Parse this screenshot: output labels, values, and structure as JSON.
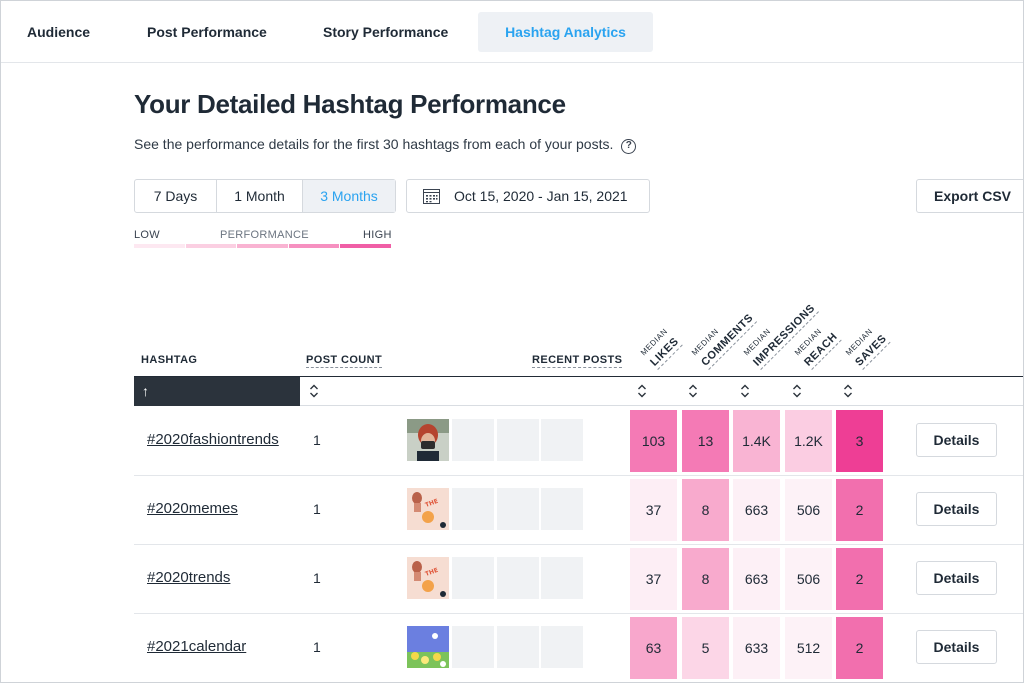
{
  "tabs": [
    {
      "label": "Audience",
      "active": false
    },
    {
      "label": "Post Performance",
      "active": false
    },
    {
      "label": "Story Performance",
      "active": false
    },
    {
      "label": "Hashtag Analytics",
      "active": true
    }
  ],
  "page": {
    "title": "Your Detailed Hashtag Performance",
    "subtitle": "See the performance details for the first 30 hashtags from each of your posts.",
    "help_icon": "question-circle-icon"
  },
  "period": {
    "options": [
      "7 Days",
      "1 Month",
      "3 Months"
    ],
    "selected": "3 Months"
  },
  "date_range": {
    "label": "Oct 15, 2020 - Jan 15, 2021",
    "icon": "calendar-icon"
  },
  "export": {
    "label": "Export CSV"
  },
  "legend": {
    "low": "LOW",
    "title": "PERFORMANCE",
    "high": "HIGH",
    "scale_colors": [
      "#fde8f1",
      "#fbcfe2",
      "#f9b3d2",
      "#f690c0",
      "#f05fa6"
    ]
  },
  "table": {
    "columns": {
      "hashtag": "HASHTAG",
      "post_count": "POST COUNT",
      "recent_posts": "RECENT POSTS",
      "median_prefix": "MEDIAN",
      "likes": "LIKES",
      "comments": "COMMENTS",
      "impressions": "IMPRESSIONS",
      "reach": "REACH",
      "saves": "SAVES"
    },
    "sort_icon": "arrow-up-icon",
    "rows": [
      {
        "hashtag": "#2020fashiontrends",
        "post_count": "1",
        "likes": "103",
        "comments": "13",
        "impressions": "1.4K",
        "reach": "1.2K",
        "saves": "3",
        "details": "Details",
        "colors": [
          "#f47ab5",
          "#f47ab5",
          "#f9b4d3",
          "#fbcde2",
          "#ee3e95"
        ]
      },
      {
        "hashtag": "#2020memes",
        "post_count": "1",
        "likes": "37",
        "comments": "8",
        "impressions": "663",
        "reach": "506",
        "saves": "2",
        "details": "Details",
        "colors": [
          "#fdeef5",
          "#f8aacd",
          "#fdf0f6",
          "#fdf2f7",
          "#f26fae"
        ]
      },
      {
        "hashtag": "#2020trends",
        "post_count": "1",
        "likes": "37",
        "comments": "8",
        "impressions": "663",
        "reach": "506",
        "saves": "2",
        "details": "Details",
        "colors": [
          "#fdeef5",
          "#f8aacd",
          "#fdf0f6",
          "#fdf2f7",
          "#f26fae"
        ]
      },
      {
        "hashtag": "#2021calendar",
        "post_count": "1",
        "likes": "63",
        "comments": "5",
        "impressions": "633",
        "reach": "512",
        "saves": "2",
        "details": "Details",
        "colors": [
          "#f8a7cc",
          "#fcd6e7",
          "#fdf0f6",
          "#fdf2f7",
          "#f26fae"
        ]
      }
    ]
  }
}
